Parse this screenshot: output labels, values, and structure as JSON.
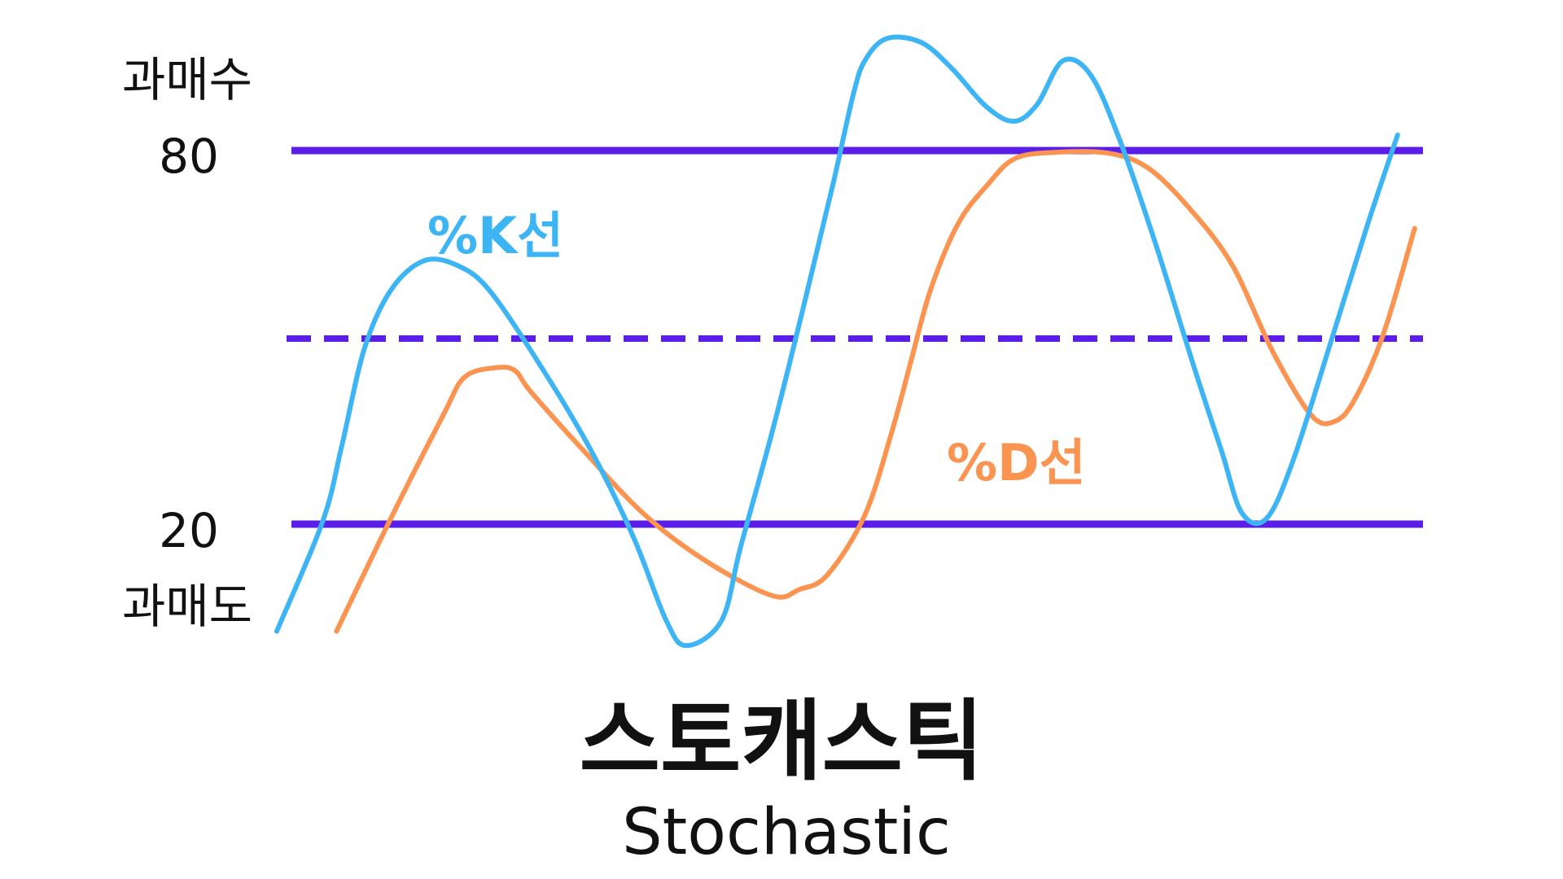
{
  "labels": {
    "overbought": "과매수",
    "level_high": "80",
    "level_low": "20",
    "oversold": "과매도",
    "k_line": "%K선",
    "d_line": "%D선",
    "title": "스토캐스틱",
    "subtitle": "Stochastic"
  },
  "levels": {
    "high": 80,
    "mid": 50,
    "low": 20
  },
  "colors": {
    "level_line": "#5b1ee8",
    "k_line": "#3db5f5",
    "d_line": "#fb9451",
    "text": "#111111"
  },
  "series": {
    "k": [
      [
        0,
        2.8
      ],
      [
        4.3,
        20.4
      ],
      [
        6.1,
        32.6
      ],
      [
        8.2,
        48.1
      ],
      [
        10.7,
        57.6
      ],
      [
        13.8,
        62.3
      ],
      [
        17,
        61.5
      ],
      [
        20.1,
        57.2
      ],
      [
        25.3,
        43.9
      ],
      [
        29.6,
        31.4
      ],
      [
        33.5,
        17.7
      ],
      [
        36.5,
        4.6
      ],
      [
        38.4,
        0.5
      ],
      [
        41.7,
        4.5
      ],
      [
        43.5,
        16.4
      ],
      [
        46.5,
        35.1
      ],
      [
        49.6,
        56.4
      ],
      [
        52.2,
        74.9
      ],
      [
        54.1,
        89.3
      ],
      [
        55.2,
        94.6
      ],
      [
        57.2,
        98
      ],
      [
        60.4,
        97.4
      ],
      [
        63.3,
        93.2
      ],
      [
        66.5,
        87.1
      ],
      [
        69.1,
        84.7
      ],
      [
        71.3,
        87.4
      ],
      [
        73.7,
        94.4
      ],
      [
        76.3,
        92.2
      ],
      [
        79,
        81.9
      ],
      [
        82.3,
        65.6
      ],
      [
        86,
        45.3
      ],
      [
        88.6,
        31.7
      ],
      [
        90.5,
        21.8
      ],
      [
        92.8,
        20.9
      ],
      [
        95.3,
        30.2
      ],
      [
        98.9,
        49.6
      ],
      [
        102.3,
        68.2
      ],
      [
        105.1,
        82.5
      ]
    ],
    "d": [
      [
        5.6,
        2.8
      ],
      [
        10.6,
        20.6
      ],
      [
        15.6,
        37.5
      ],
      [
        17.6,
        43.6
      ],
      [
        20.4,
        45.1
      ],
      [
        22.3,
        44.7
      ],
      [
        23.8,
        41.3
      ],
      [
        28.4,
        32.5
      ],
      [
        34.5,
        21.5
      ],
      [
        40.5,
        13.8
      ],
      [
        46.5,
        8.5
      ],
      [
        49,
        9.5
      ],
      [
        51.6,
        11.8
      ],
      [
        55.1,
        21.3
      ],
      [
        57.6,
        34.4
      ],
      [
        59.4,
        45.7
      ],
      [
        61.3,
        57.6
      ],
      [
        63.9,
        68.3
      ],
      [
        66.7,
        74.6
      ],
      [
        69.2,
        78.7
      ],
      [
        72.9,
        79.7
      ],
      [
        77.9,
        79.6
      ],
      [
        81.7,
        77.2
      ],
      [
        85.7,
        70.5
      ],
      [
        89.6,
        61.6
      ],
      [
        93.4,
        47.7
      ],
      [
        97,
        37.5
      ],
      [
        99.2,
        36.5
      ],
      [
        101.1,
        40.1
      ],
      [
        103.8,
        50.7
      ],
      [
        106.7,
        67.5
      ]
    ]
  }
}
